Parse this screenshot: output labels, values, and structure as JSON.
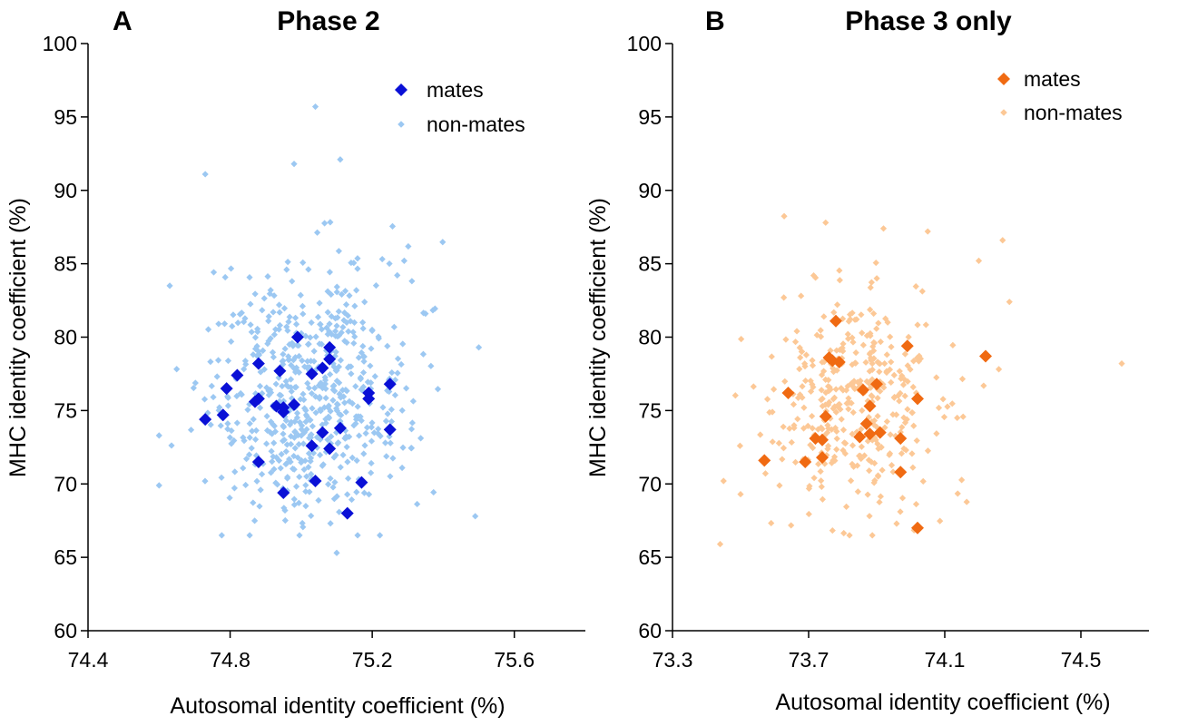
{
  "chart_data": [
    {
      "type": "scatter",
      "panel_label": "A",
      "title": "Phase 2",
      "xlabel": "Autosomal identity coefficient (%)",
      "ylabel": "MHC identity coefficient (%)",
      "xlim": [
        74.4,
        75.8
      ],
      "ylim": [
        60,
        100
      ],
      "xticks": [
        "74.4",
        "74.8",
        "75.2",
        "75.6"
      ],
      "xtick_values": [
        74.4,
        74.8,
        75.2,
        75.6
      ],
      "yticks": [
        "60",
        "65",
        "70",
        "75",
        "80",
        "85",
        "90",
        "95",
        "100"
      ],
      "ytick_values": [
        60,
        65,
        70,
        75,
        80,
        85,
        90,
        95,
        100
      ],
      "legend_position": "top-right",
      "series": [
        {
          "name": "non-mates",
          "color": "#9cc8f2",
          "marker": "diamond-small",
          "generated": true,
          "count": 600,
          "x_mean": 75.02,
          "x_sd": 0.14,
          "y_mean": 76.3,
          "y_sd": 4.2,
          "outliers": [
            [
              75.04,
              95.7
            ],
            [
              74.98,
              91.8
            ],
            [
              75.11,
              92.1
            ],
            [
              74.73,
              91.1
            ],
            [
              75.5,
              79.3
            ],
            [
              75.49,
              67.8
            ],
            [
              75.1,
              65.3
            ],
            [
              74.6,
              69.9
            ],
            [
              74.6,
              73.3
            ],
            [
              74.63,
              83.5
            ],
            [
              75.35,
              81.6
            ],
            [
              75.29,
              85.2
            ]
          ]
        },
        {
          "name": "mates",
          "color": "#0a10d6",
          "marker": "diamond",
          "points": [
            [
              74.99,
              80.0
            ],
            [
              75.08,
              79.3
            ],
            [
              75.08,
              78.5
            ],
            [
              74.88,
              78.2
            ],
            [
              75.06,
              77.9
            ],
            [
              74.82,
              77.4
            ],
            [
              74.94,
              77.7
            ],
            [
              75.03,
              77.5
            ],
            [
              75.25,
              76.8
            ],
            [
              74.79,
              76.5
            ],
            [
              75.19,
              76.2
            ],
            [
              75.19,
              75.8
            ],
            [
              74.88,
              75.8
            ],
            [
              74.87,
              75.6
            ],
            [
              74.93,
              75.3
            ],
            [
              74.95,
              75.2
            ],
            [
              74.98,
              75.4
            ],
            [
              74.95,
              74.9
            ],
            [
              74.78,
              74.7
            ],
            [
              74.73,
              74.4
            ],
            [
              75.11,
              73.8
            ],
            [
              75.25,
              73.7
            ],
            [
              75.06,
              73.5
            ],
            [
              75.03,
              72.6
            ],
            [
              75.08,
              72.4
            ],
            [
              74.88,
              71.5
            ],
            [
              75.04,
              70.2
            ],
            [
              75.17,
              70.1
            ],
            [
              74.95,
              69.4
            ],
            [
              75.13,
              68.0
            ]
          ]
        }
      ]
    },
    {
      "type": "scatter",
      "panel_label": "B",
      "title": "Phase 3 only",
      "xlabel": "Autosomal identity coefficient (%)",
      "ylabel": "MHC identity coefficient (%)",
      "xlim": [
        73.3,
        74.7
      ],
      "ylim": [
        60,
        100
      ],
      "xticks": [
        "73.3",
        "73.7",
        "74.1",
        "74.5"
      ],
      "xtick_values": [
        73.3,
        73.7,
        74.1,
        74.5
      ],
      "yticks": [
        "60",
        "65",
        "70",
        "75",
        "80",
        "85",
        "90",
        "95",
        "100"
      ],
      "ytick_values": [
        60,
        65,
        70,
        75,
        80,
        85,
        90,
        95,
        100
      ],
      "legend_position": "top-right",
      "series": [
        {
          "name": "non-mates",
          "color": "#fcc896",
          "marker": "diamond-small",
          "generated": true,
          "count": 380,
          "x_mean": 73.84,
          "x_sd": 0.13,
          "y_mean": 75.6,
          "y_sd": 3.8,
          "outliers": [
            [
              74.62,
              78.2
            ],
            [
              73.44,
              65.9
            ],
            [
              74.05,
              87.2
            ],
            [
              74.27,
              86.6
            ],
            [
              74.2,
              85.2
            ],
            [
              73.75,
              87.8
            ],
            [
              74.29,
              82.4
            ],
            [
              73.92,
              87.4
            ],
            [
              73.5,
              69.3
            ]
          ]
        },
        {
          "name": "mates",
          "color": "#f06a12",
          "marker": "diamond",
          "points": [
            [
              73.78,
              81.1
            ],
            [
              73.99,
              79.4
            ],
            [
              74.22,
              78.7
            ],
            [
              73.76,
              78.6
            ],
            [
              73.77,
              78.4
            ],
            [
              73.79,
              78.3
            ],
            [
              73.9,
              76.8
            ],
            [
              73.86,
              76.4
            ],
            [
              73.64,
              76.2
            ],
            [
              74.02,
              75.8
            ],
            [
              73.88,
              75.3
            ],
            [
              73.75,
              74.6
            ],
            [
              73.87,
              74.1
            ],
            [
              73.91,
              73.5
            ],
            [
              73.85,
              73.2
            ],
            [
              73.88,
              73.4
            ],
            [
              73.72,
              73.1
            ],
            [
              73.74,
              73.0
            ],
            [
              73.97,
              73.1
            ],
            [
              73.74,
              71.8
            ],
            [
              73.69,
              71.5
            ],
            [
              73.57,
              71.6
            ],
            [
              73.97,
              70.8
            ],
            [
              74.02,
              67.0
            ]
          ]
        }
      ]
    }
  ]
}
